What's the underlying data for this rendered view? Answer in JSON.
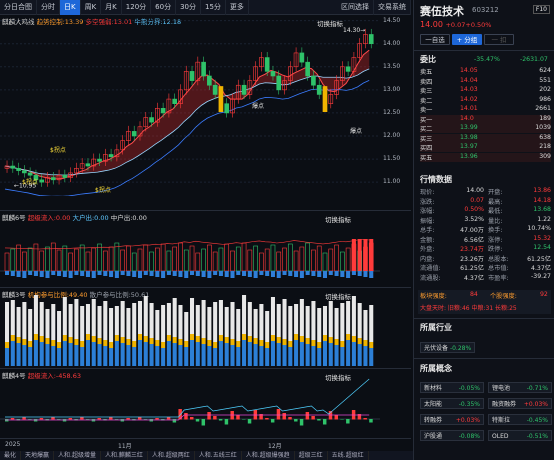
{
  "toolbar": {
    "tabs": [
      "分日合图",
      "分时",
      "日K",
      "周K",
      "月K",
      "120分",
      "60分",
      "30分",
      "15分",
      "更多"
    ],
    "active": 2,
    "right": [
      "区间选择",
      "交易系统"
    ]
  },
  "main_chart": {
    "legend_name": "麒麟大鸡线",
    "legend_2": "趋势控制:13.39",
    "legend_3": "多空强弱:13.01",
    "legend_4": "牛熊分界:12.18",
    "switch_label": "切换指标",
    "price_ticks": [
      "14.50",
      "14.00",
      "13.50",
      "13.00",
      "12.50",
      "12.00",
      "11.50",
      "11.00"
    ],
    "high_label": "14.30",
    "low_label": "10.95",
    "notes": [
      "$拐点",
      "$拐点",
      "$拐点",
      "爆点",
      "爆点"
    ],
    "chart_data": {
      "type": "candlestick",
      "ylim": [
        10.7,
        14.6
      ],
      "close": [
        11.35,
        11.3,
        11.25,
        11.2,
        11.15,
        11.05,
        11.0,
        11.1,
        11.05,
        11.15,
        11.1,
        11.2,
        11.3,
        11.4,
        11.35,
        11.5,
        11.45,
        11.6,
        11.55,
        11.7,
        11.9,
        12.1,
        12.0,
        12.2,
        12.4,
        12.3,
        12.6,
        12.5,
        12.8,
        12.7,
        13.0,
        13.4,
        13.2,
        13.6,
        13.3,
        13.1,
        12.9,
        12.7,
        12.5,
        12.8,
        13.1,
        12.9,
        13.2,
        13.5,
        13.7,
        13.4,
        13.3,
        13.0,
        13.2,
        13.5,
        13.8,
        13.6,
        13.3,
        13.1,
        12.9,
        12.7,
        12.9,
        13.2,
        13.5,
        13.4,
        13.7,
        14.0,
        14.2,
        14.0
      ]
    }
  },
  "panel2": {
    "legend_name": "麒麟6号",
    "legend_2": "超级流入:0.00",
    "legend_3": "大户出:0.00",
    "legend_4": "中户出:0.00",
    "switch_label": "切换指标"
  },
  "panel3": {
    "legend_name": "麒麟3号",
    "legend_2": "机构参与比例:49.40",
    "legend_3": "散户参与比例:50.61",
    "switch_label": "切换指标"
  },
  "panel4": {
    "legend_name": "麒麟4号",
    "legend_2": "超级流入:-458.63",
    "switch_label": "切换指标"
  },
  "x_axis": {
    "labels": [
      "2025",
      "11月",
      "12月"
    ]
  },
  "bottom_tabs": [
    "最化",
    "天地爆赢",
    "人和.超级增量",
    "人和.麒麟三红",
    "人和.超级两红",
    "人和.五线三红",
    "人和.超级爆强趋",
    "超级三红",
    "五线.超级红"
  ],
  "stock": {
    "name": "赛伍技术",
    "code": "603212",
    "price": "14.00",
    "change": "+0.07",
    "pct": "+0.50%",
    "buttons": [
      "一自选",
      "+ 分组",
      "一 扣"
    ]
  },
  "order_book": {
    "title": "委比",
    "ratio": "-35.47%",
    "diff": "-2631.07",
    "asks": [
      [
        "卖五",
        "14.05",
        "624"
      ],
      [
        "卖四",
        "14.04",
        "551"
      ],
      [
        "卖三",
        "14.03",
        "202"
      ],
      [
        "卖二",
        "14.02",
        "986"
      ],
      [
        "卖一",
        "14.01",
        "2661"
      ]
    ],
    "bids": [
      [
        "买一",
        "14.0",
        "189"
      ],
      [
        "买二",
        "13.99",
        "1039"
      ],
      [
        "买三",
        "13.98",
        "638"
      ],
      [
        "买四",
        "13.97",
        "218"
      ],
      [
        "买五",
        "13.96",
        "309"
      ]
    ]
  },
  "quote": {
    "title": "行情数据",
    "rows": [
      [
        "现价:",
        "14.00",
        "开盘:",
        "13.86"
      ],
      [
        "涨跌:",
        "0.07",
        "最高:",
        "14.18"
      ],
      [
        "涨幅:",
        "0.50%",
        "最低:",
        "13.68"
      ],
      [
        "振幅:",
        "3.52%",
        "量比:",
        "1.22"
      ],
      [
        "总手:",
        "47.00万",
        "换手:",
        "10.74%"
      ],
      [
        "金额:",
        "6.56亿",
        "涨停:",
        "15.32"
      ],
      [
        "外盘:",
        "23.74万",
        "跌停:",
        "12.54"
      ],
      [
        "内盘:",
        "23.26万",
        "总股本:",
        "61.25亿"
      ],
      [
        "流通值:",
        "61.25亿",
        "总市值:",
        "4.37亿"
      ],
      [
        "流通股:",
        "4.37亿",
        "市盈率:",
        "-39.27"
      ]
    ]
  },
  "strength": {
    "a": "板块强度:",
    "a_val": "84",
    "b": "个股强度:",
    "b_val": "92",
    "flow": "大盘天时: 旧粮:46 中粮:31 长粮:25"
  },
  "industry": {
    "title": "所属行业",
    "tag": "光伏设备",
    "pct": "-0.28%"
  },
  "concepts": {
    "title": "所属概念",
    "items": [
      [
        "新材料",
        "-0.05%"
      ],
      [
        "锂电池",
        "-0.71%"
      ],
      [
        "太阳能",
        "-0.35%"
      ],
      [
        "融资融券",
        "+0.03%"
      ],
      [
        "转融券",
        "+0.03%"
      ],
      [
        "特斯拉",
        "-0.45%"
      ],
      [
        "沪股通",
        "-0.08%"
      ],
      [
        "OLED",
        "-0.51%"
      ]
    ]
  }
}
